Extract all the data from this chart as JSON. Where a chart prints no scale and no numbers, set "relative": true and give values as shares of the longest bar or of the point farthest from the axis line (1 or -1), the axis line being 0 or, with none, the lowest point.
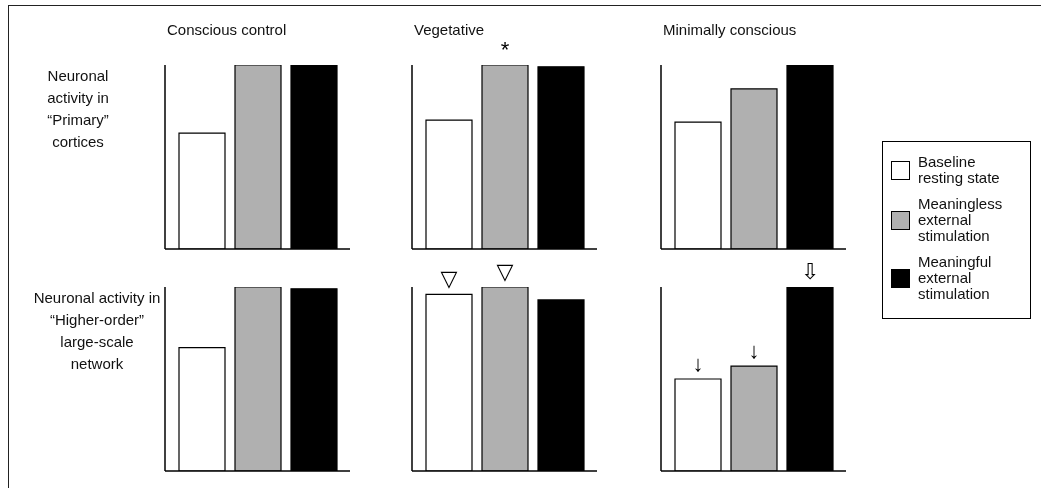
{
  "chart_data": [
    {
      "type": "bar",
      "title": "Conscious control",
      "ylabel": "Neuronal activity in “Primary” cortices",
      "relative": true,
      "legend": "right",
      "categories": [
        null
      ],
      "series": [
        {
          "name": "Baseline resting state",
          "color": "#ffffff",
          "values": [
            0.63
          ]
        },
        {
          "name": "Meaningless external stimulation",
          "color": "#b0b0b0",
          "values": [
            1
          ]
        },
        {
          "name": "Meaningful external stimulation",
          "color": "#000000",
          "values": [
            1
          ]
        }
      ]
    },
    {
      "type": "bar",
      "title": "Vegetative",
      "relative": true,
      "categories": [
        null
      ],
      "annotations": [
        {
          "text": "*",
          "y": 1
        }
      ],
      "series": [
        {
          "color": "#ffffff",
          "values": [
            0.7
          ]
        },
        {
          "color": "#b0b0b0",
          "values": [
            1
          ]
        },
        {
          "color": "#000000",
          "values": [
            0.99
          ]
        }
      ]
    },
    {
      "type": "bar",
      "title": "Minimally conscious",
      "relative": true,
      "categories": [
        null
      ],
      "series": [
        {
          "color": "#ffffff",
          "values": [
            0.69
          ]
        },
        {
          "color": "#b0b0b0",
          "values": [
            0.87
          ]
        },
        {
          "color": "#000000",
          "values": [
            1
          ]
        }
      ]
    },
    {
      "type": "bar",
      "ylabel": "Neuronal activity in “Higher-order” large-scale network",
      "relative": true,
      "categories": [
        null
      ],
      "series": [
        {
          "color": "#ffffff",
          "values": [
            0.67
          ]
        },
        {
          "color": "#b0b0b0",
          "values": [
            1
          ]
        },
        {
          "color": "#000000",
          "values": [
            0.99
          ]
        }
      ]
    },
    {
      "type": "bar",
      "relative": true,
      "categories": [
        null
      ],
      "annotations": [
        {
          "text": "▽",
          "y": 0.96
        },
        {
          "text": "▽",
          "y": 1
        }
      ],
      "series": [
        {
          "color": "#ffffff",
          "values": [
            0.96
          ]
        },
        {
          "color": "#b0b0b0",
          "values": [
            1
          ]
        },
        {
          "color": "#000000",
          "values": [
            0.93
          ]
        }
      ]
    },
    {
      "type": "bar",
      "relative": true,
      "categories": [
        null
      ],
      "annotations": [
        {
          "text": "↓",
          "y": 0.5
        },
        {
          "text": "↓",
          "y": 0.57
        },
        {
          "text": "⇩",
          "y": 1
        }
      ],
      "series": [
        {
          "color": "#ffffff",
          "values": [
            0.5
          ]
        },
        {
          "color": "#b0b0b0",
          "values": [
            0.57
          ]
        },
        {
          "color": "#000000",
          "values": [
            1
          ]
        }
      ]
    }
  ]
}
